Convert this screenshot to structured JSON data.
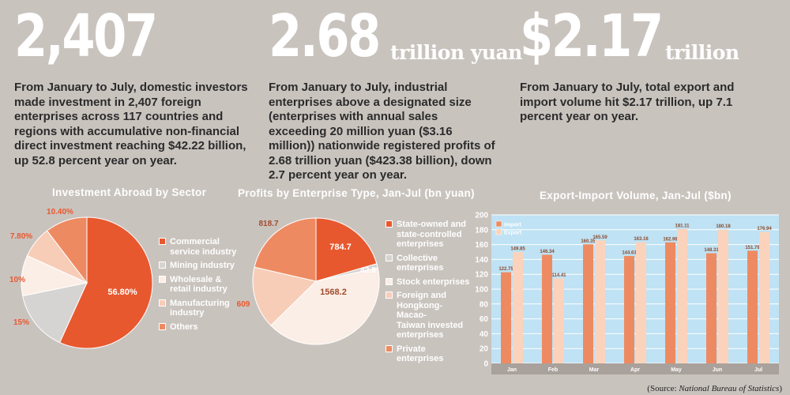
{
  "stats": [
    {
      "number": "2,407",
      "unit": "",
      "text": "From January to July, domestic investors made investment in 2,407 foreign enterprises across 117 countries and regions with accumulative non-financial direct investment reaching $42.22 billion, up 52.8 percent year on year."
    },
    {
      "number": "2.68",
      "unit": "trillion yuan",
      "text": "From January to July, industrial enterprises above a designated size (enterprises with annual sales exceeding 20 million yuan ($3.16 million)) nationwide registered profits of 2.68 trillion yuan ($423.38 billion), down 2.7 percent year on year."
    },
    {
      "number": "$2.17",
      "unit": "trillion",
      "text": "From January to July, total export and import volume hit $2.17 trillion, up 7.1 percent year on year."
    }
  ],
  "colors": {
    "background": "#c9c3be",
    "orange": "#e8582f",
    "grey": "#d6d4d2",
    "cream": "#fbeee6",
    "peach": "#f7cdb8",
    "salmon": "#ee8a61",
    "plot_bg": "#bfe2f4",
    "export": "#fbd3bc"
  },
  "chart_data": [
    {
      "type": "pie",
      "title": "Investment Abroad by Sector",
      "labels": [
        "Commercial service industry",
        "Mining industry",
        "Wholesale & retail industry",
        "Manufacturing industry",
        "Others"
      ],
      "values": [
        56.8,
        15,
        10,
        7.8,
        10.4
      ],
      "value_labels": [
        "56.80%",
        "15%",
        "10%",
        "7.80%",
        "10.40%"
      ],
      "legend": [
        {
          "label": "Commercial\nservice industry"
        },
        {
          "label": "Mining industry"
        },
        {
          "label": "Wholesale &\nretail industry"
        },
        {
          "label": "Manufacturing\nindustry"
        },
        {
          "label": "Others"
        }
      ],
      "legend_position": "right"
    },
    {
      "type": "pie",
      "title": "Profits by Enterprise Type, Jan-Jul (bn yuan)",
      "labels": [
        "State-owned and state-controlled enterprises",
        "Collective enterprises",
        "Stock enterprises",
        "Foreign and Hongkong-Macao-Taiwan invested enterprises",
        "Private enterprises"
      ],
      "values": [
        784.7,
        42.6,
        1568.2,
        609,
        818.7
      ],
      "value_labels": [
        "784.7",
        "42.6",
        "1568.2",
        "609",
        "818.7"
      ],
      "legend": [
        {
          "label": "State-owned and\nstate-controlled\nenterprises"
        },
        {
          "label": "Collective\nenterprises"
        },
        {
          "label": "Stock enterprises"
        },
        {
          "label": "Foreign and\nHongkong-Macao-\nTaiwan invested\nenterprises"
        },
        {
          "label": "Private enterprises"
        }
      ],
      "legend_position": "right"
    },
    {
      "type": "bar",
      "title": "Export-Import Volume, Jan-Jul ($bn)",
      "categories": [
        "Jan",
        "Feb",
        "Mar",
        "Apr",
        "May",
        "Jun",
        "Jul"
      ],
      "series": [
        {
          "name": "Import",
          "values": [
            122.75,
            146.34,
            160.35,
            144.63,
            162.98,
            148.31,
            151.79
          ]
        },
        {
          "name": "Export",
          "values": [
            149.85,
            114.41,
            165.59,
            163.16,
            181.11,
            180.18,
            176.94
          ]
        }
      ],
      "value_labels": [
        [
          "122.75",
          "146.34",
          "160.35",
          "144.63",
          "162.98",
          "148.31",
          "151.79"
        ],
        [
          "149.85",
          "114.41",
          "165.59",
          "163.16",
          "181.11",
          "180.18",
          "176.94"
        ]
      ],
      "ylim": [
        0,
        200
      ],
      "yticks": [
        0,
        20,
        40,
        60,
        80,
        100,
        120,
        140,
        160,
        180,
        200
      ],
      "grid": true,
      "legend_position": "top-left"
    }
  ],
  "source": {
    "prefix": "(Source: ",
    "name": "National Bureau of Statistics",
    "suffix": ")"
  }
}
